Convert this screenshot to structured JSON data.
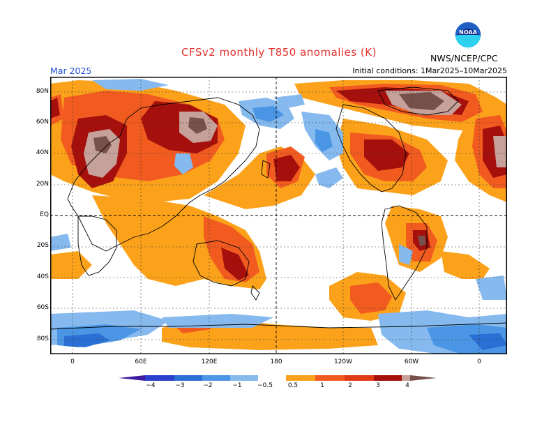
{
  "title": "CFSv2 monthly T850 anomalies (K)",
  "month": "Mar 2025",
  "initial_conditions": "Initial conditions: 1Mar2025–10Mar2025",
  "agency": "NWS/NCEP/CPC",
  "logo_text": "NOAA",
  "colors": {
    "title": "#e0302c",
    "month": "#1f4fd0",
    "neg_4": "#3d1a9e",
    "neg_3": "#2a3fcc",
    "neg_2": "#2a6fd4",
    "neg_1": "#4a96e4",
    "neg_05": "#86baef",
    "pos_05": "#fba21a",
    "pos_1": "#f25b1f",
    "pos_2": "#e23a14",
    "pos_3": "#a5100c",
    "pos_4": "#c5a19a",
    "pos_5": "#76504a"
  },
  "lat_labels": [
    "80N",
    "60N",
    "40N",
    "20N",
    "EQ",
    "20S",
    "40S",
    "60S",
    "80S"
  ],
  "lon_labels": [
    "0",
    "60E",
    "120E",
    "180",
    "120W",
    "60W",
    "0"
  ],
  "colorbar_labels": [
    "−4",
    "−3",
    "−2",
    "−1",
    "−0.5",
    "0.5",
    "1",
    "2",
    "3",
    "4"
  ]
}
